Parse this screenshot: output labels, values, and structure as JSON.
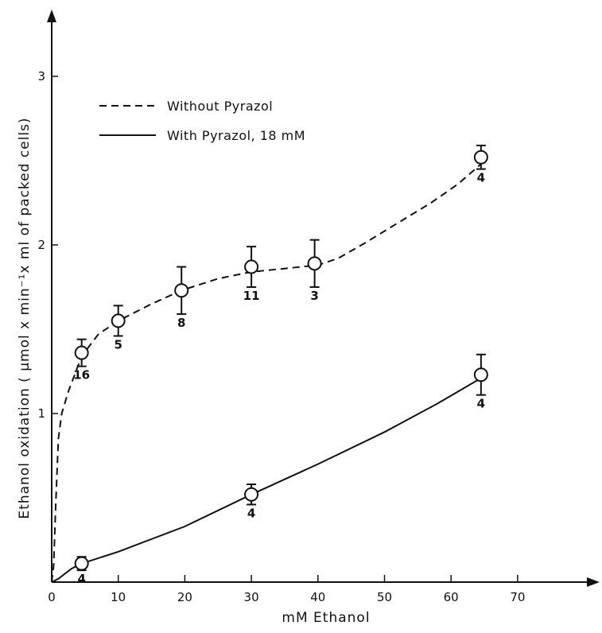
{
  "chart_data": {
    "type": "line",
    "xlabel": "mM  Ethanol",
    "ylabel": "Ethanol  oxidation ( µmol x  min⁻¹x  ml  of  packed  cells)",
    "xlim": [
      0,
      80
    ],
    "ylim": [
      0,
      3.35
    ],
    "x_ticks": [
      0,
      10,
      20,
      30,
      40,
      50,
      60,
      70
    ],
    "y_ticks": [
      1,
      2,
      3
    ],
    "grid": false,
    "legend_position": "top-left",
    "series": [
      {
        "name": "Without  Pyrazol",
        "line_style": "dashed",
        "points": [
          {
            "x": 4.5,
            "y": 1.36,
            "err": 0.08,
            "n": "16"
          },
          {
            "x": 10,
            "y": 1.55,
            "err": 0.09,
            "n": "5"
          },
          {
            "x": 19.5,
            "y": 1.73,
            "err": 0.14,
            "n": "8"
          },
          {
            "x": 30,
            "y": 1.87,
            "err": 0.12,
            "n": "11"
          },
          {
            "x": 39.5,
            "y": 1.89,
            "err": 0.14,
            "n": "3"
          },
          {
            "x": 64.5,
            "y": 2.52,
            "err": 0.07,
            "n": "4"
          }
        ],
        "curve": [
          [
            0,
            0
          ],
          [
            0.3,
            0.1
          ],
          [
            0.6,
            0.45
          ],
          [
            1,
            0.85
          ],
          [
            1.5,
            1.0
          ],
          [
            2.5,
            1.13
          ],
          [
            4.5,
            1.34
          ],
          [
            7,
            1.47
          ],
          [
            10,
            1.55
          ],
          [
            15,
            1.65
          ],
          [
            19.5,
            1.73
          ],
          [
            25,
            1.8
          ],
          [
            30,
            1.84
          ],
          [
            35,
            1.86
          ],
          [
            40,
            1.88
          ],
          [
            43,
            1.92
          ],
          [
            47,
            2.01
          ],
          [
            52,
            2.13
          ],
          [
            57,
            2.25
          ],
          [
            61,
            2.36
          ],
          [
            64.5,
            2.48
          ]
        ]
      },
      {
        "name": "With  Pyrazol, 18 mM",
        "line_style": "solid",
        "points": [
          {
            "x": 4.5,
            "y": 0.11,
            "err": 0.04,
            "n": "4"
          },
          {
            "x": 30,
            "y": 0.52,
            "err": 0.06,
            "n": "4"
          },
          {
            "x": 64.5,
            "y": 1.23,
            "err": 0.12,
            "n": "4"
          }
        ],
        "curve": [
          [
            0,
            0
          ],
          [
            1,
            0.02
          ],
          [
            2,
            0.05
          ],
          [
            3,
            0.08
          ],
          [
            4.5,
            0.11
          ],
          [
            10,
            0.18
          ],
          [
            20,
            0.33
          ],
          [
            30,
            0.52
          ],
          [
            40,
            0.7
          ],
          [
            50,
            0.89
          ],
          [
            58,
            1.06
          ],
          [
            64.5,
            1.21
          ]
        ]
      }
    ]
  }
}
